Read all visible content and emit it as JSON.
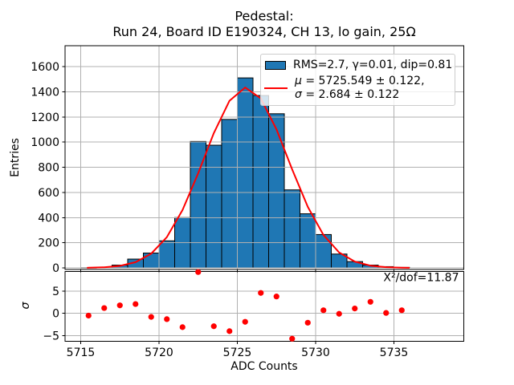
{
  "title": {
    "line1": "Pedestal:",
    "line2": "Run 24, Board ID E190324, CH 13, lo gain, 25Ω"
  },
  "axes": {
    "main_ylabel": "Entries",
    "resid_ylabel": "σ",
    "xlabel": "ADC Counts"
  },
  "legend": {
    "hist_entry": "RMS=2.7, γ=0.01, dip=0.81",
    "fit_entry_line1": "μ = 5725.549 ± 0.122,",
    "fit_entry_line2": "σ = 2.684 ± 0.122"
  },
  "annotations": {
    "chi2_over_dof": "X²/dof=11.87"
  },
  "colors": {
    "hist_fill": "#1f77b4",
    "hist_edge": "#000000",
    "fit_line": "#ff0000",
    "residual_marker": "#ff0000",
    "grid": "#b0b0b0",
    "spine": "#000000",
    "legend_edge": "#cccccc"
  },
  "chart_data": [
    {
      "type": "bar",
      "name": "pedestal-histogram",
      "title": "Pedestal: Run 24, Board ID E190324, CH 13, lo gain, 25Ω",
      "xlabel": "ADC Counts",
      "ylabel": "Entries",
      "bin_width": 1,
      "bin_left_edges": [
        5715,
        5716,
        5717,
        5718,
        5719,
        5720,
        5721,
        5722,
        5723,
        5724,
        5725,
        5726,
        5727,
        5728,
        5729,
        5730,
        5731,
        5732,
        5733,
        5734,
        5735
      ],
      "values": [
        1,
        4,
        22,
        70,
        118,
        215,
        400,
        1005,
        975,
        1180,
        1510,
        1370,
        1225,
        620,
        430,
        265,
        110,
        50,
        22,
        10,
        4
      ],
      "xticks": [
        5715,
        5720,
        5725,
        5730,
        5735
      ],
      "yticks": [
        0,
        200,
        400,
        600,
        800,
        1000,
        1200,
        1400,
        1600
      ],
      "xlim": [
        5714.0,
        5739.45
      ],
      "ylim": [
        0,
        1765
      ],
      "grid": true,
      "legend_position": "upper right",
      "fit_curve": {
        "type": "gaussian",
        "amplitude": 1434,
        "mu": 5725.549,
        "sigma": 2.684,
        "x_start": 5715.4,
        "x_end": 5736.0,
        "sample_step": 1.0
      }
    },
    {
      "type": "scatter",
      "name": "fit-residuals",
      "ylabel": "σ",
      "xlabel": "ADC Counts",
      "x": [
        5715.5,
        5716.5,
        5717.5,
        5718.5,
        5719.5,
        5720.5,
        5721.5,
        5722.5,
        5723.5,
        5724.5,
        5725.5,
        5726.5,
        5727.5,
        5728.5,
        5729.5,
        5730.5,
        5731.5,
        5732.5,
        5733.5,
        5734.5,
        5735.5
      ],
      "y": [
        -0.5,
        1.2,
        1.8,
        2.1,
        -0.8,
        -1.3,
        -3.1,
        9.3,
        -2.9,
        -4.0,
        -1.9,
        4.6,
        3.8,
        -5.7,
        -2.1,
        0.7,
        -0.1,
        1.1,
        2.6,
        0.1,
        0.7
      ],
      "xticks": [
        5715,
        5720,
        5725,
        5730,
        5735
      ],
      "yticks": [
        -5,
        0,
        5
      ],
      "xlim": [
        5714.0,
        5739.45
      ],
      "ylim": [
        -6.3,
        9.45
      ],
      "grid": true
    }
  ]
}
